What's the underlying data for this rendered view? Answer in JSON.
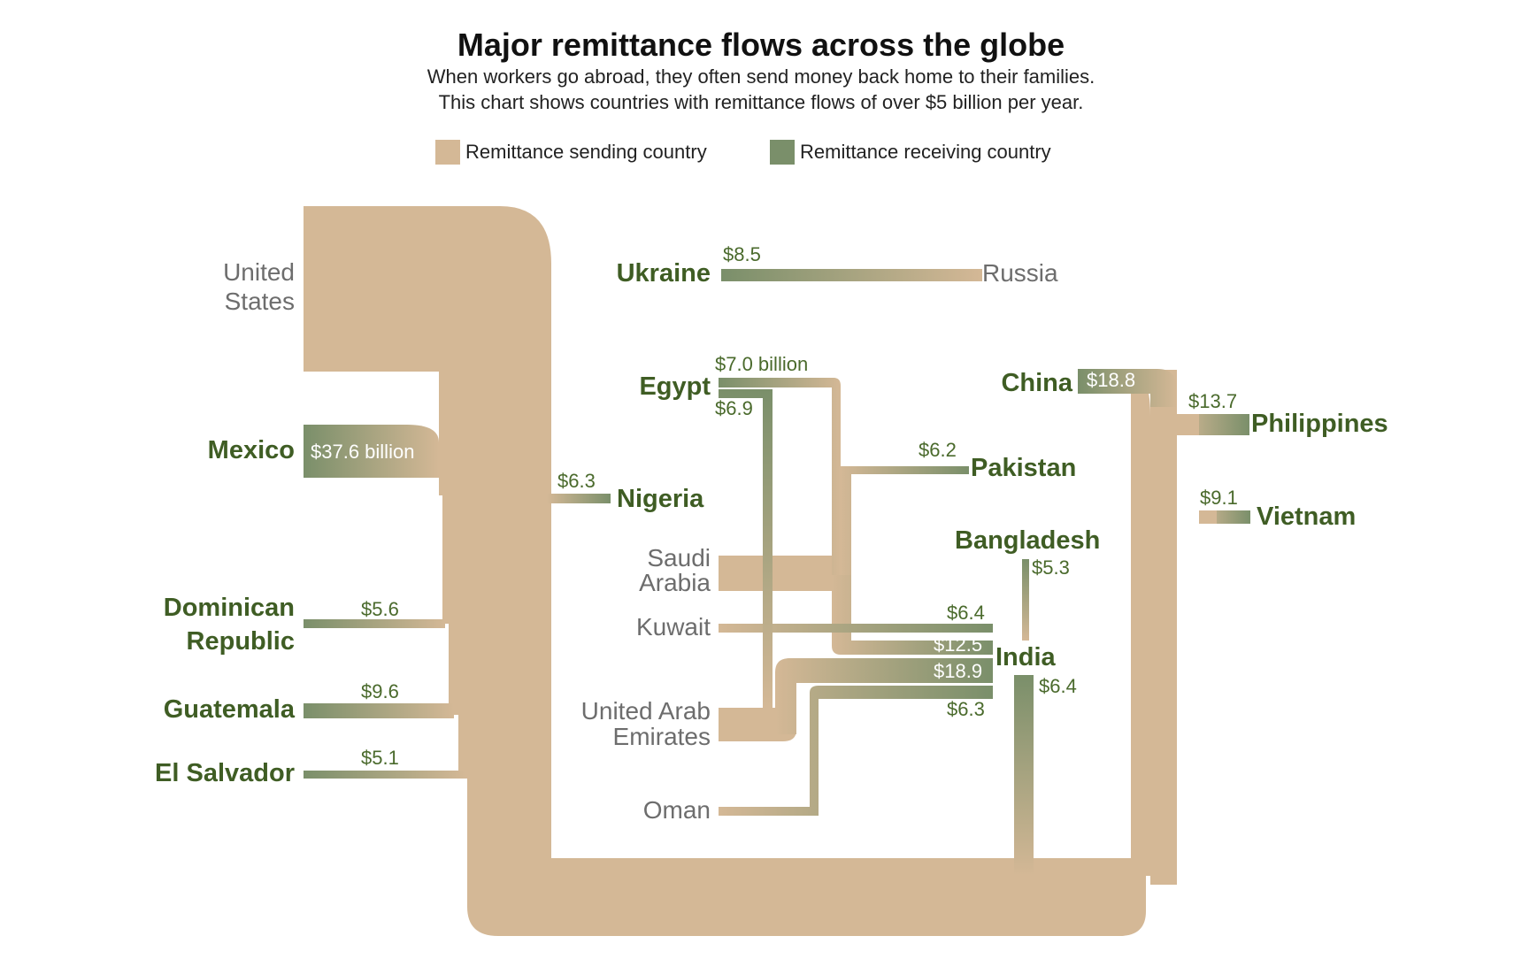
{
  "title": "Major remittance flows across the globe",
  "subtitle_line1": "When workers go abroad, they often send money back home to their families.",
  "subtitle_line2": "This chart shows countries with remittance flows of over $5 billion per year.",
  "legend": {
    "sending": {
      "label": "Remittance sending country",
      "color": "#d4b896"
    },
    "receiving": {
      "label": "Remittance receiving country",
      "color": "#7a8f6a"
    }
  },
  "countries": {
    "united_states": [
      "United",
      "States"
    ],
    "mexico": "Mexico",
    "dominican_republic": [
      "Dominican",
      "Republic"
    ],
    "guatemala": "Guatemala",
    "el_salvador": "El Salvador",
    "ukraine": "Ukraine",
    "russia": "Russia",
    "egypt": "Egypt",
    "nigeria": "Nigeria",
    "saudi_arabia": [
      "Saudi",
      "Arabia"
    ],
    "kuwait": "Kuwait",
    "uae": [
      "United Arab",
      "Emirates"
    ],
    "oman": "Oman",
    "pakistan": "Pakistan",
    "bangladesh": "Bangladesh",
    "india": "India",
    "china": "China",
    "philippines": "Philippines",
    "vietnam": "Vietnam"
  },
  "flows": [
    {
      "from": "United States",
      "to": "Mexico",
      "label": "$37.6 billion"
    },
    {
      "from": "United States",
      "to": "Nigeria",
      "label": "$6.3"
    },
    {
      "from": "United States",
      "to": "Dominican Republic",
      "label": "$5.6"
    },
    {
      "from": "United States",
      "to": "Guatemala",
      "label": "$9.6"
    },
    {
      "from": "United States",
      "to": "El Salvador",
      "label": "$5.1"
    },
    {
      "from": "United States",
      "to": "India",
      "label": "$6.4"
    },
    {
      "from": "United States",
      "to": "China",
      "label": "$18.8"
    },
    {
      "from": "United States",
      "to": "Philippines",
      "label": "$13.7"
    },
    {
      "from": "United States",
      "to": "Vietnam",
      "label": "$9.1"
    },
    {
      "from": "Russia",
      "to": "Ukraine",
      "label": "$8.5"
    },
    {
      "from": "Saudi Arabia",
      "to": "Egypt",
      "label": "$7.0 billion"
    },
    {
      "from": "United Arab Emirates",
      "to": "Egypt",
      "label": "$6.9"
    },
    {
      "from": "Saudi Arabia",
      "to": "Pakistan",
      "label": "$6.2"
    },
    {
      "from": "Kuwait",
      "to": "India",
      "label": "$6.4"
    },
    {
      "from": "Saudi Arabia",
      "to": "India",
      "label": "$12.5"
    },
    {
      "from": "United Arab Emirates",
      "to": "India",
      "label": "$18.9"
    },
    {
      "from": "Oman",
      "to": "India",
      "label": "$6.3"
    },
    {
      "from": "India",
      "to": "Bangladesh",
      "label": "$5.3"
    }
  ]
}
